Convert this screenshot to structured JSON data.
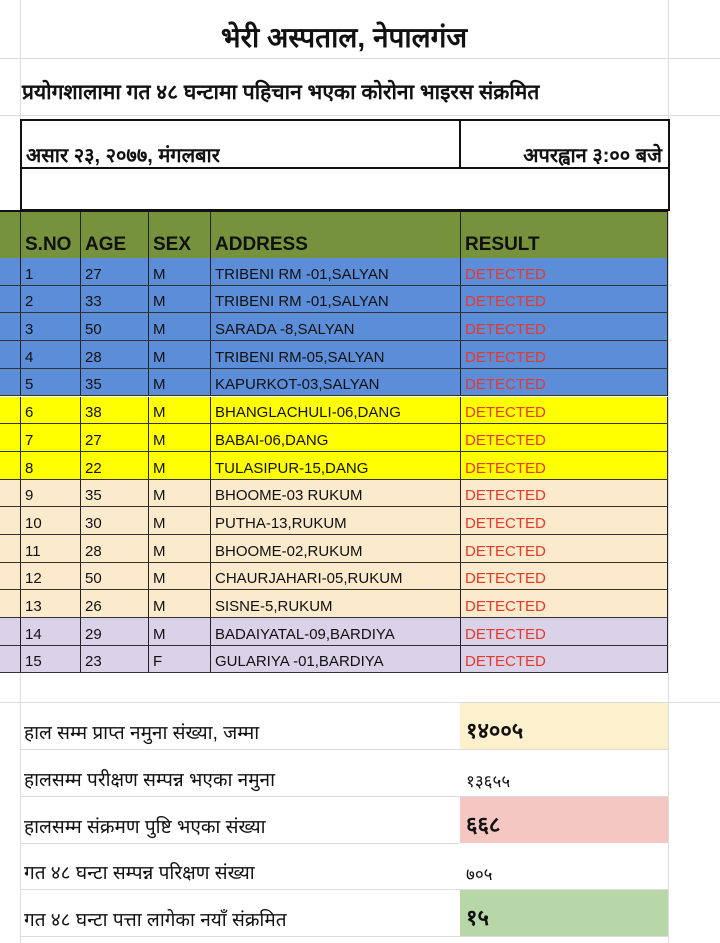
{
  "title": "भेरी अस्पताल, नेपालगंज",
  "subtitle": "प्रयोगशालामा गत ४८ घन्टामा पहिचान भएका कोरोना भाइरस संक्रमित",
  "date": "असार २३, २०७७, मंगलबार",
  "time": "अपरह्वान ३:०० बजे",
  "table": {
    "headers": [
      "S.NO",
      "AGE",
      "SEX",
      "ADDRESS",
      "RESULT"
    ],
    "rows": [
      {
        "sno": "1",
        "age": "27",
        "sex": "M",
        "address": "TRIBENI RM -01,SALYAN",
        "result": "DETECTED",
        "color": "#5b8dd9"
      },
      {
        "sno": "2",
        "age": "33",
        "sex": "M",
        "address": "TRIBENI RM -01,SALYAN",
        "result": "DETECTED",
        "color": "#5b8dd9"
      },
      {
        "sno": "3",
        "age": "50",
        "sex": "M",
        "address": "SARADA -8,SALYAN",
        "result": "DETECTED",
        "color": "#5b8dd9"
      },
      {
        "sno": "4",
        "age": "28",
        "sex": "M",
        "address": "TRIBENI RM-05,SALYAN",
        "result": "DETECTED",
        "color": "#5b8dd9"
      },
      {
        "sno": "5",
        "age": "35",
        "sex": "M",
        "address": "KAPURKOT-03,SALYAN",
        "result": "DETECTED",
        "color": "#5b8dd9"
      },
      {
        "sno": "6",
        "age": "38",
        "sex": "M",
        "address": "BHANGLACHULI-06,DANG",
        "result": "DETECTED",
        "color": "#ffff00"
      },
      {
        "sno": "7",
        "age": "27",
        "sex": "M",
        "address": "BABAI-06,DANG",
        "result": "DETECTED",
        "color": "#ffff00"
      },
      {
        "sno": "8",
        "age": "22",
        "sex": "M",
        "address": "TULASIPUR-15,DANG",
        "result": "DETECTED",
        "color": "#ffff00"
      },
      {
        "sno": "9",
        "age": "35",
        "sex": "M",
        "address": "BHOOME-03 RUKUM",
        "result": "DETECTED",
        "color": "#fbeacb"
      },
      {
        "sno": "10",
        "age": "30",
        "sex": "M",
        "address": "PUTHA-13,RUKUM",
        "result": "DETECTED",
        "color": "#fbeacb"
      },
      {
        "sno": "11",
        "age": "28",
        "sex": "M",
        "address": "BHOOME-02,RUKUM",
        "result": "DETECTED",
        "color": "#fbeacb"
      },
      {
        "sno": "12",
        "age": "50",
        "sex": "M",
        "address": "CHAURJAHARI-05,RUKUM",
        "result": "DETECTED",
        "color": "#fbeacb"
      },
      {
        "sno": "13",
        "age": "26",
        "sex": "M",
        "address": "SISNE-5,RUKUM",
        "result": "DETECTED",
        "color": "#fbeacb"
      },
      {
        "sno": "14",
        "age": "29",
        "sex": "M",
        "address": "BADAIYATAL-09,BARDIYA",
        "result": "DETECTED",
        "color": "#d9d2e9"
      },
      {
        "sno": "15",
        "age": "23",
        "sex": "F",
        "address": "GULARIYA -01,BARDIYA",
        "result": "DETECTED",
        "color": "#d9d2e9"
      }
    ]
  },
  "summary": [
    {
      "label": "हाल सम्म प्राप्त नमुना संख्या,  जम्मा",
      "value": "१४००५",
      "color": "#fdf0cc",
      "bold": true
    },
    {
      "label": "हालसम्म परीक्षण सम्पन्न भएका नमुना",
      "value": "१३६५५",
      "color": "#ffffff",
      "bold": false
    },
    {
      "label": "हालसम्म संक्रमण पुष्टि भएका संख्या",
      "value": "६६८",
      "color": "#f4c7c3",
      "bold": true
    },
    {
      "label": "गत ४८ घन्टा सम्पन्न परिक्षण संख्या",
      "value": "७०५",
      "color": "#ffffff",
      "bold": false
    },
    {
      "label": "गत ४८ घन्टा पत्ता लागेका नयाँ संक्रमित",
      "value": "१५",
      "color": "#b7d7a8",
      "bold": true
    }
  ]
}
